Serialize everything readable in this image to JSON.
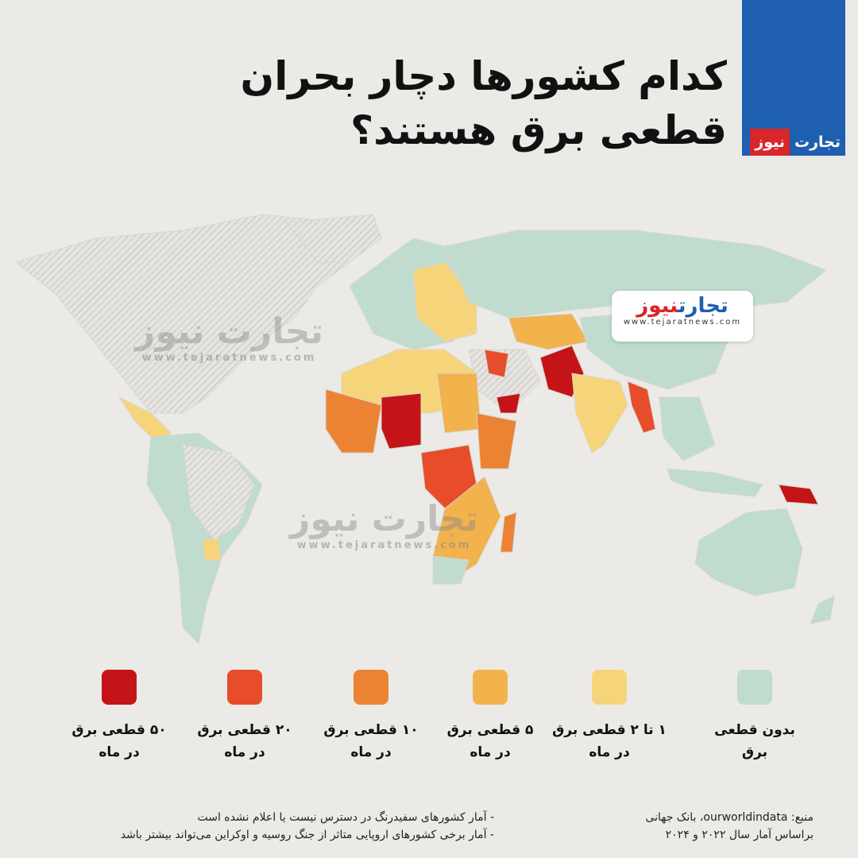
{
  "title": {
    "line1": "کدام کشورها دچار بحران",
    "line2": "قطعی برق هستند؟"
  },
  "brand": {
    "part1": "تجارت",
    "part2": "نیوز",
    "url": "www.tejaratnews.com",
    "blue": "#1e5fb0",
    "red": "#d9262a"
  },
  "legend": [
    {
      "line1": "بدون قطعی",
      "line2": "برق",
      "color": "#bfdccf"
    },
    {
      "line1": "۱ تا ۲ قطعی برق",
      "line2": "در ماه",
      "color": "#f6d57a"
    },
    {
      "line1": "۵ قطعی برق",
      "line2": "در ماه",
      "color": "#f2b24c"
    },
    {
      "line1": "۱۰ قطعی برق",
      "line2": "در ماه",
      "color": "#ec8332"
    },
    {
      "line1": "۲۰ قطعی برق",
      "line2": "در ماه",
      "color": "#e74d2a"
    },
    {
      "line1": "۵۰ قطعی برق",
      "line2": "در ماه",
      "color": "#c41418"
    }
  ],
  "source": {
    "line1": "منبع: ourworldindata، بانک جهانی",
    "line2": "براساس آمار سال ۲۰۲۲ و ۲۰۲۴"
  },
  "notes": [
    "- آمار کشورهای سفیدرنگ در دسترس نیست یا اعلام نشده است",
    "- آمار برخی کشورهای اروپایی متاثر از جنگ روسیه و اوکراین می‌تواند بیشتر باشد"
  ],
  "no_data_color": "#e6e4e0"
}
